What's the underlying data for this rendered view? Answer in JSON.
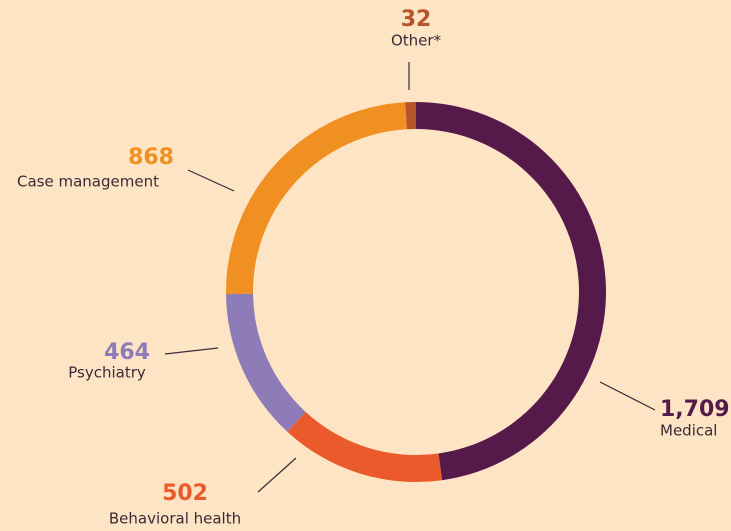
{
  "chart_data": {
    "type": "pie",
    "categories": [
      "Medical",
      "Behavioral health",
      "Psychiatry",
      "Case management",
      "Other*"
    ],
    "values": [
      1709,
      502,
      464,
      868,
      32
    ],
    "value_labels": [
      "1,709",
      "502",
      "464",
      "868",
      "32"
    ],
    "colors": [
      "#561a4a",
      "#ea5a2a",
      "#8e7cb8",
      "#f08f22",
      "#b5532b"
    ]
  }
}
